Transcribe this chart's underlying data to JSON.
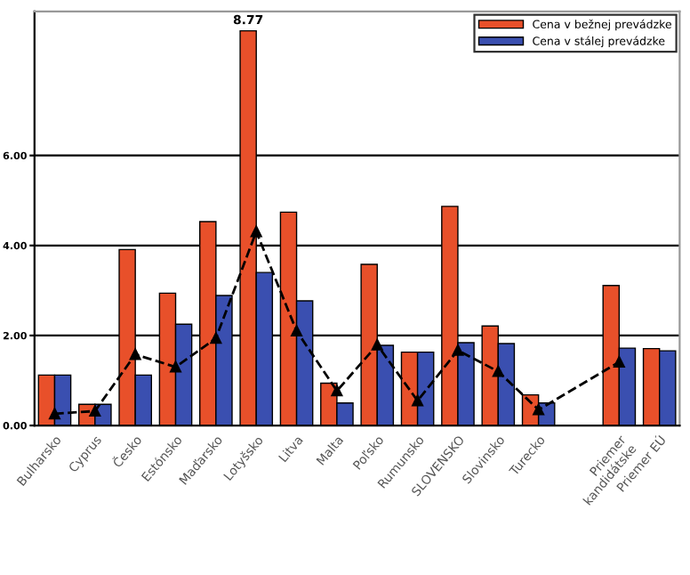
{
  "chart_data": {
    "type": "bar",
    "categories": [
      "Bulharsko",
      "Cyprus",
      "Česko",
      "Estónsko",
      "Maďarsko",
      "Lotyšsko",
      "Litva",
      "Malta",
      "Poľsko",
      "Rumunsko",
      "SLOVENSKO",
      "Slovinsko",
      "Turecko",
      null,
      "Priemer\nkandidátske",
      "Priemer EÚ"
    ],
    "series": [
      {
        "name": "Cena v bežnej prevádzke",
        "color": "#e8502a",
        "values": [
          1.12,
          0.47,
          3.91,
          2.94,
          4.53,
          8.77,
          4.74,
          0.94,
          3.58,
          1.63,
          4.87,
          2.21,
          0.68,
          null,
          3.11,
          1.71
        ],
        "value_labels": [
          null,
          null,
          null,
          null,
          null,
          "8.77",
          null,
          null,
          null,
          null,
          null,
          null,
          null,
          null,
          null,
          null
        ]
      },
      {
        "name": "Cena v stálej prevádzke",
        "color": "#3a4fb0",
        "values": [
          1.12,
          0.47,
          1.12,
          2.25,
          2.89,
          3.4,
          2.77,
          0.5,
          1.78,
          1.63,
          1.84,
          1.82,
          0.5,
          null,
          1.72,
          1.66
        ]
      },
      {
        "type": "line",
        "color": "#000000",
        "marker": "triangle",
        "line_style": "dashed",
        "values": [
          0.26,
          0.32,
          1.58,
          1.3,
          1.94,
          4.31,
          2.1,
          0.77,
          1.79,
          0.55,
          1.67,
          1.2,
          0.35,
          null,
          1.41,
          null
        ]
      }
    ],
    "ylim": [
      0,
      9.2
    ],
    "yticks": [
      {
        "value": 0,
        "label": "0.00"
      },
      {
        "value": 2,
        "label": "2.00"
      },
      {
        "value": 4,
        "label": "4.00"
      },
      {
        "value": 6,
        "label": "6.00"
      }
    ],
    "grid": "y",
    "legend": "top right"
  }
}
